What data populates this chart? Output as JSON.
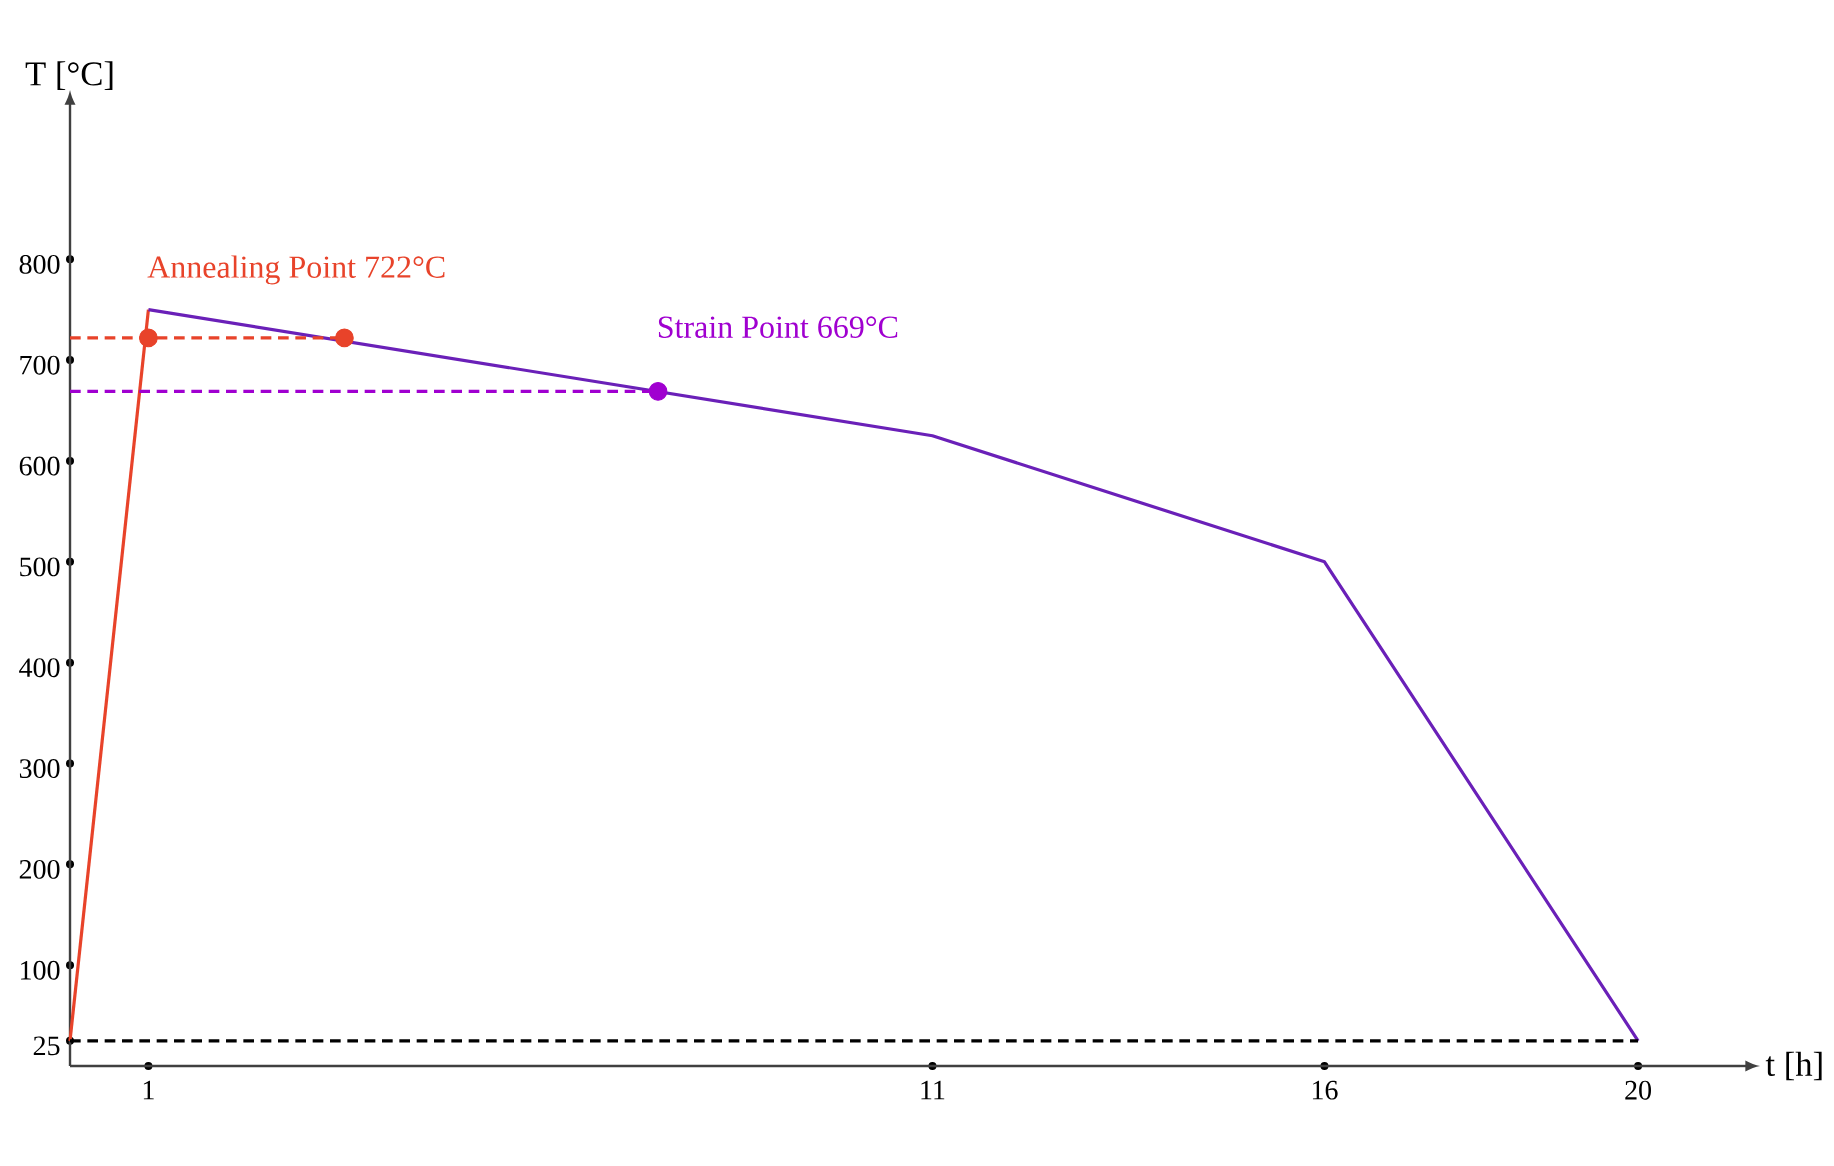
{
  "chart_data": {
    "type": "line",
    "xlabel": "t [h]",
    "ylabel": "T [°C]",
    "xlim": [
      0,
      21.3
    ],
    "ylim": [
      0,
      948
    ],
    "xticks": [
      1,
      11,
      16,
      20
    ],
    "yticks": [
      25,
      100,
      200,
      300,
      400,
      500,
      600,
      700,
      800
    ],
    "grid": false,
    "marker": "none",
    "line_style": "solid",
    "series": [
      {
        "color": "#e8432a",
        "x": [
          0,
          1
        ],
        "values": [
          25,
          750
        ]
      },
      {
        "color": "#6a20b8",
        "x": [
          1,
          11,
          16,
          20
        ],
        "values": [
          750,
          625,
          500,
          25
        ]
      },
      {
        "color": "#e8432a",
        "line_style": "dashed",
        "x": [
          0,
          3.5
        ],
        "values": [
          722,
          722
        ]
      },
      {
        "color": "#a000d0",
        "line_style": "dashed",
        "x": [
          0,
          7.5
        ],
        "values": [
          669,
          669
        ]
      },
      {
        "color": "#000000",
        "line_style": "dashed",
        "x": [
          0,
          20
        ],
        "values": [
          25,
          25
        ]
      },
      {
        "type": "scatter",
        "color": "#e8432a",
        "marker": "circle",
        "x": [
          1,
          3.5
        ],
        "values": [
          722,
          722
        ]
      },
      {
        "type": "scatter",
        "color": "#a000d0",
        "marker": "circle",
        "x": [
          7.5
        ],
        "values": [
          669
        ]
      }
    ],
    "annotations": [
      {
        "text": "Annealing Point 722°C",
        "x": 1,
        "y": 722
      },
      {
        "text": "Strain Point 669°C",
        "x": 7.5,
        "y": 669
      }
    ]
  }
}
